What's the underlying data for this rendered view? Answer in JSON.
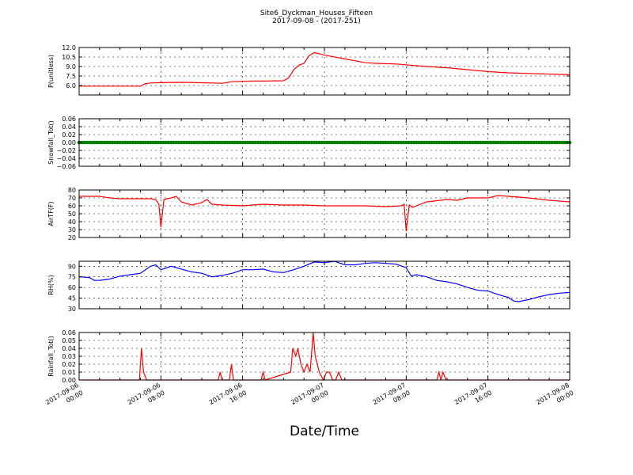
{
  "figure": {
    "title": "Site6_Dyckman_Houses_Fifteen",
    "subtitle": "2017-09-08 - (2017-251)",
    "xlabel": "Date/Time"
  },
  "x_ticks": [
    {
      "line1": "2017-09-06",
      "line2": "00:00"
    },
    {
      "line1": "2017-09-06",
      "line2": "08:00"
    },
    {
      "line1": "2017-09-06",
      "line2": "16:00"
    },
    {
      "line1": "2017-09-07",
      "line2": "00:00"
    },
    {
      "line1": "2017-09-07",
      "line2": "08:00"
    },
    {
      "line1": "2017-09-07",
      "line2": "16:00"
    },
    {
      "line1": "2017-09-08",
      "line2": "00:00"
    }
  ],
  "chart_data": [
    {
      "type": "line",
      "ylabel": "P(unitless)",
      "color": "#ff0000",
      "ylim": [
        4.5,
        12.0
      ],
      "yticks": [
        "6.0",
        "7.5",
        "9.0",
        "10.5",
        "12.0"
      ],
      "ytick_values": [
        6.0,
        7.5,
        9.0,
        10.5,
        12.0
      ],
      "grid": true,
      "x_hours": [
        0,
        6,
        6.5,
        7,
        8,
        10,
        13,
        14,
        15,
        17,
        18,
        20,
        20.5,
        21,
        21.5,
        22,
        22.5,
        23,
        24,
        26,
        28,
        29,
        31,
        34,
        36,
        38,
        40,
        42,
        44,
        48
      ],
      "y": [
        5.9,
        5.9,
        6.3,
        6.4,
        6.45,
        6.5,
        6.4,
        6.35,
        6.6,
        6.7,
        6.7,
        6.75,
        7.2,
        8.5,
        9.2,
        9.5,
        10.7,
        11.2,
        10.8,
        10.2,
        9.6,
        9.5,
        9.4,
        9.0,
        8.8,
        8.5,
        8.2,
        8.0,
        7.9,
        7.7
      ]
    },
    {
      "type": "scatter",
      "ylabel": "Snowfall_Tot()",
      "color": "#008000",
      "ylim": [
        -0.06,
        0.06
      ],
      "yticks": [
        "−0.06",
        "−0.04",
        "−0.02",
        "0.00",
        "0.02",
        "0.04",
        "0.06"
      ],
      "ytick_values": [
        -0.06,
        -0.04,
        -0.02,
        0.0,
        0.02,
        0.04,
        0.06
      ],
      "grid": true,
      "constant_value": 0.0,
      "x_range": [
        0,
        48
      ]
    },
    {
      "type": "line",
      "ylabel": "AirTF(F)",
      "color": "#ff0000",
      "ylim": [
        20,
        80
      ],
      "yticks": [
        "20",
        "30",
        "40",
        "50",
        "60",
        "70",
        "80"
      ],
      "ytick_values": [
        20,
        30,
        40,
        50,
        60,
        70,
        80
      ],
      "grid": true,
      "x_hours": [
        0,
        2,
        3,
        4,
        6,
        7,
        7.5,
        7.8,
        8.0,
        8.3,
        9,
        9.5,
        10,
        11,
        12,
        12.5,
        13,
        14,
        16,
        18,
        20,
        22,
        24,
        26,
        28,
        30,
        31.5,
        31.8,
        32.0,
        32.3,
        32.6,
        34,
        36,
        37,
        38,
        40,
        41,
        42,
        44,
        46,
        48
      ],
      "y": [
        72,
        72,
        70,
        69,
        69,
        69,
        68,
        62,
        33,
        68,
        70,
        72,
        65,
        61,
        64,
        68,
        62,
        61,
        60,
        62,
        61,
        61,
        60,
        60,
        60,
        59,
        60,
        62,
        28,
        61,
        58,
        65,
        68,
        67,
        70,
        70,
        73,
        72,
        70,
        67,
        65
      ]
    },
    {
      "type": "line",
      "ylabel": "RH(%)",
      "color": "#0000ff",
      "ylim": [
        30,
        97
      ],
      "yticks": [
        "30",
        "45",
        "60",
        "75",
        "90"
      ],
      "ytick_values": [
        30,
        45,
        60,
        75,
        90
      ],
      "grid": true,
      "x_hours": [
        0,
        1,
        1.5,
        2,
        3,
        4,
        5,
        6,
        7,
        7.5,
        8,
        9,
        10,
        11,
        12,
        13,
        14,
        15,
        16,
        17,
        18,
        19,
        20,
        21,
        22,
        23,
        24,
        25,
        26,
        27,
        28,
        29,
        30,
        31,
        32,
        32.5,
        33,
        34,
        35,
        36,
        37,
        38,
        39,
        40,
        41,
        42,
        42.5,
        43,
        44,
        45,
        46,
        47,
        48
      ],
      "y": [
        75,
        74,
        70,
        70,
        72,
        76,
        78,
        80,
        90,
        92,
        85,
        90,
        86,
        82,
        80,
        75,
        77,
        80,
        85,
        85,
        86,
        82,
        81,
        85,
        90,
        96,
        95,
        97,
        92,
        92,
        94,
        95,
        94,
        93,
        88,
        76,
        78,
        75,
        70,
        68,
        65,
        60,
        56,
        55,
        50,
        46,
        41,
        40,
        43,
        47,
        50,
        52,
        53
      ]
    },
    {
      "type": "line",
      "ylabel": "Rainfall_Tot()",
      "color": "#ff0000",
      "ylim": [
        0,
        0.06
      ],
      "yticks": [
        "0.00",
        "0.01",
        "0.02",
        "0.03",
        "0.04",
        "0.05",
        "0.06"
      ],
      "ytick_values": [
        0.0,
        0.01,
        0.02,
        0.03,
        0.04,
        0.05,
        0.06
      ],
      "grid": true,
      "x_hours": [
        0,
        5.9,
        6.1,
        6.3,
        6.6,
        13.6,
        13.8,
        14.0,
        14.7,
        14.9,
        15.1,
        17.8,
        18.0,
        18.2,
        20.7,
        20.9,
        21.2,
        21.4,
        21.7,
        22.0,
        22.3,
        22.6,
        22.9,
        23.1,
        23.3,
        23.5,
        23.9,
        24.2,
        24.5,
        24.8,
        25.1,
        25.4,
        25.7,
        26.2,
        26.5,
        26.8,
        35.0,
        35.2,
        35.4,
        35.6,
        35.9,
        36.2,
        48.0
      ],
      "y": [
        0,
        0,
        0.04,
        0.01,
        0,
        0,
        0.01,
        0,
        0,
        0.02,
        0,
        0,
        0.01,
        0,
        0.01,
        0.04,
        0.03,
        0.04,
        0.02,
        0.01,
        0.02,
        0.01,
        0.06,
        0.03,
        0.02,
        0.01,
        0,
        0.01,
        0.01,
        0,
        0,
        0.01,
        0,
        0,
        0,
        0,
        0,
        0.01,
        0,
        0.01,
        0,
        0,
        0
      ]
    }
  ]
}
